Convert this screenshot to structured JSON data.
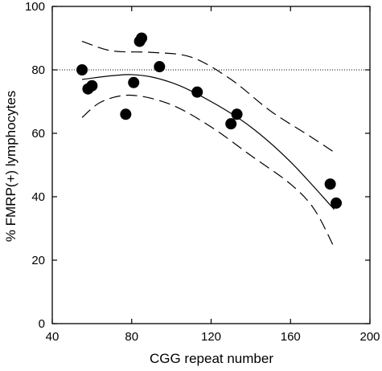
{
  "chart_data": {
    "type": "scatter",
    "title": "",
    "xlabel": "CGG repeat number",
    "ylabel": "% FMRP(+) lymphocytes",
    "xlim": [
      40,
      200
    ],
    "ylim": [
      0,
      100
    ],
    "xticks": [
      40,
      80,
      120,
      160,
      200
    ],
    "yticks": [
      0,
      20,
      40,
      60,
      80,
      100
    ],
    "xtick_labels": [
      "40",
      "80",
      "120",
      "160",
      "200"
    ],
    "ytick_labels": [
      "0",
      "20",
      "40",
      "60",
      "80",
      "100"
    ],
    "grid": false,
    "reference_line": {
      "y": 80,
      "style": "dotted"
    },
    "points": [
      {
        "x": 55,
        "y": 80
      },
      {
        "x": 58,
        "y": 74
      },
      {
        "x": 60,
        "y": 75
      },
      {
        "x": 77,
        "y": 66
      },
      {
        "x": 81,
        "y": 76
      },
      {
        "x": 84,
        "y": 89
      },
      {
        "x": 85,
        "y": 90
      },
      {
        "x": 94,
        "y": 81
      },
      {
        "x": 113,
        "y": 73
      },
      {
        "x": 130,
        "y": 63
      },
      {
        "x": 133,
        "y": 66
      },
      {
        "x": 180,
        "y": 44
      },
      {
        "x": 183,
        "y": 38
      }
    ],
    "fit_curve": {
      "style": "solid",
      "points": [
        [
          55,
          77
        ],
        [
          80,
          78.5
        ],
        [
          100,
          76
        ],
        [
          120,
          70
        ],
        [
          140,
          62
        ],
        [
          160,
          51
        ],
        [
          182,
          36
        ]
      ]
    },
    "confidence_upper": {
      "style": "dashed",
      "points": [
        [
          55,
          89
        ],
        [
          70,
          86
        ],
        [
          90,
          85.5
        ],
        [
          110,
          84
        ],
        [
          130,
          77
        ],
        [
          150,
          67
        ],
        [
          170,
          59
        ],
        [
          182,
          54
        ]
      ]
    },
    "confidence_lower": {
      "style": "dashed",
      "points": [
        [
          55,
          65
        ],
        [
          65,
          70
        ],
        [
          80,
          72
        ],
        [
          100,
          69
        ],
        [
          120,
          62
        ],
        [
          140,
          53
        ],
        [
          160,
          44
        ],
        [
          172,
          36
        ],
        [
          182,
          24
        ]
      ]
    }
  }
}
